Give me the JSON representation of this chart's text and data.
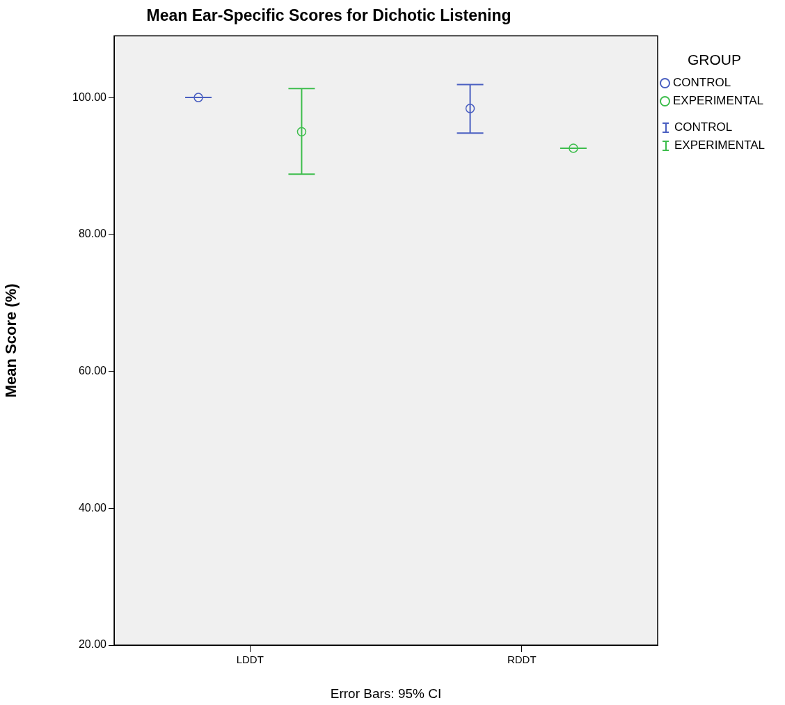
{
  "chart_data": {
    "type": "scatter",
    "title": "Mean Ear-Specific Scores for Dichotic Listening",
    "ylabel": "Mean Score (%)",
    "legend_title": "GROUP",
    "annotations": [
      "Error Bars: 95% CI"
    ],
    "categories": [
      "LDDT",
      "RDDT"
    ],
    "series": [
      {
        "name": "CONTROL",
        "color": "#4a5fc1",
        "values": [
          100,
          98.4
        ],
        "errors": [
          [
            100,
            100
          ],
          [
            94.8,
            101.9
          ]
        ]
      },
      {
        "name": "EXPERIMENTAL",
        "color": "#3dbd4c",
        "values": [
          95.0,
          92.6
        ],
        "errors": [
          [
            88.8,
            101.3
          ],
          [
            92.6,
            92.6
          ]
        ]
      }
    ],
    "ylim": [
      20,
      109
    ],
    "yticks": [
      {
        "value": 20,
        "label": "20.00"
      },
      {
        "value": 40,
        "label": "40.00"
      },
      {
        "value": 60,
        "label": "60.00"
      },
      {
        "value": 80,
        "label": "80.00"
      },
      {
        "value": 100,
        "label": "100.00"
      }
    ],
    "grid": false,
    "legend": "top right",
    "marker": "circle"
  }
}
